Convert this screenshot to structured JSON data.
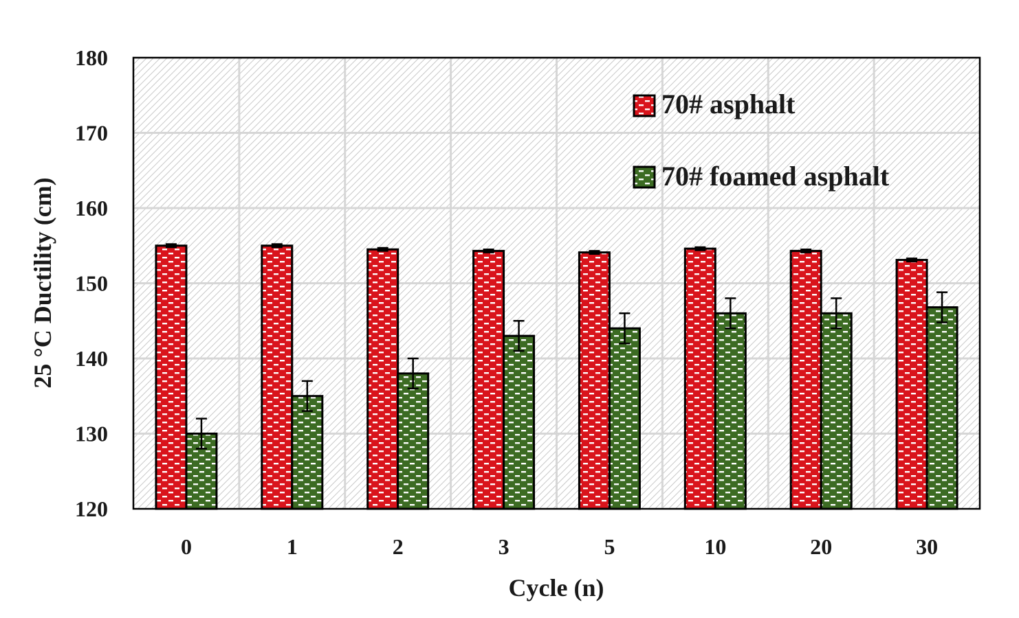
{
  "chart_data": {
    "type": "bar",
    "title": "",
    "xlabel": "Cycle (n)",
    "ylabel": "25 °C Ductility (cm)",
    "ylim": [
      120,
      180
    ],
    "yticks": [
      120,
      130,
      140,
      150,
      160,
      170,
      180
    ],
    "grid": true,
    "legend_position": "top-right",
    "categories": [
      "0",
      "1",
      "2",
      "3",
      "5",
      "10",
      "20",
      "30"
    ],
    "series": [
      {
        "name": "70# asphalt",
        "color": "#d9141c",
        "values": [
          155.0,
          155.0,
          154.5,
          154.3,
          154.1,
          154.6,
          154.3,
          153.1
        ],
        "errors": [
          0.2,
          0.2,
          0.2,
          0.2,
          0.2,
          0.2,
          0.2,
          0.2
        ]
      },
      {
        "name": "70# foamed asphalt",
        "color": "#3c6b23",
        "values": [
          130.0,
          135.0,
          138.0,
          143.0,
          144.0,
          146.0,
          146.0,
          146.8
        ],
        "errors": [
          2.0,
          2.0,
          2.0,
          2.0,
          2.0,
          2.0,
          2.0,
          2.0
        ]
      }
    ]
  }
}
